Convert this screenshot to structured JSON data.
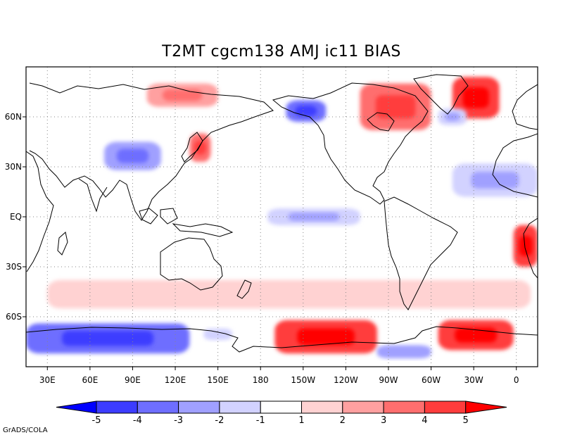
{
  "title": "T2MT cgcm138 AMJ ic11 BIAS",
  "credit": "GrADS/COLA",
  "map": {
    "lon_range": [
      15,
      375
    ],
    "lat_range": [
      -90,
      90
    ],
    "x_ticks": [
      {
        "lon": 30,
        "label": "30E"
      },
      {
        "lon": 60,
        "label": "60E"
      },
      {
        "lon": 90,
        "label": "90E"
      },
      {
        "lon": 120,
        "label": "120E"
      },
      {
        "lon": 150,
        "label": "150E"
      },
      {
        "lon": 180,
        "label": "180"
      },
      {
        "lon": 210,
        "label": "150W"
      },
      {
        "lon": 240,
        "label": "120W"
      },
      {
        "lon": 270,
        "label": "90W"
      },
      {
        "lon": 300,
        "label": "60W"
      },
      {
        "lon": 330,
        "label": "30W"
      },
      {
        "lon": 360,
        "label": "0"
      }
    ],
    "y_ticks": [
      {
        "lat": 60,
        "label": "60N"
      },
      {
        "lat": 30,
        "label": "30N"
      },
      {
        "lat": 0,
        "label": "EQ"
      },
      {
        "lat": -30,
        "label": "30S"
      },
      {
        "lat": -60,
        "label": "60S"
      }
    ]
  },
  "colorbar": {
    "colors": [
      "#0000ff",
      "#3c3cff",
      "#6e6eff",
      "#a0a0ff",
      "#d2d2ff",
      "#ffffff",
      "#ffd2d2",
      "#ffa0a0",
      "#ff6e6e",
      "#ff3c3c",
      "#ff0000"
    ],
    "labels": [
      "-5",
      "-4",
      "-3",
      "-2",
      "-1",
      "1",
      "2",
      "3",
      "4",
      "5"
    ]
  },
  "chart_data": {
    "type": "heatmap",
    "variable": "T2MT",
    "title": "T2MT cgcm138 AMJ ic11 BIAS",
    "levels": [
      -5,
      -4,
      -3,
      -2,
      -1,
      1,
      2,
      3,
      4,
      5
    ],
    "features": [
      {
        "name": "Antarctic Indian sector cold bias",
        "lon": [
          15,
          130
        ],
        "lat": [
          -82,
          -64
        ],
        "value": -4
      },
      {
        "name": "Ross Sea cold patch",
        "lon": [
          140,
          160
        ],
        "lat": [
          -74,
          -67
        ],
        "value": -2
      },
      {
        "name": "Antarctic Pacific warm bias",
        "lon": [
          190,
          262
        ],
        "lat": [
          -82,
          -62
        ],
        "value": 4
      },
      {
        "name": "Weddell Sea warm bias",
        "lon": [
          305,
          358
        ],
        "lat": [
          -80,
          -62
        ],
        "value": 4
      },
      {
        "name": "Bellingshausen cold patch",
        "lon": [
          262,
          300
        ],
        "lat": [
          -85,
          -77
        ],
        "value": -3
      },
      {
        "name": "Greenland warm bias",
        "lon": [
          315,
          348
        ],
        "lat": [
          59,
          84
        ],
        "value": 4
      },
      {
        "name": "Canadian Arctic warm bias",
        "lon": [
          250,
          300
        ],
        "lat": [
          52,
          80
        ],
        "value": 3
      },
      {
        "name": "Alaska cold bias",
        "lon": [
          198,
          226
        ],
        "lat": [
          57,
          70
        ],
        "value": -4
      },
      {
        "name": "Northern Siberia warm bias",
        "lon": [
          100,
          150
        ],
        "lat": [
          66,
          80
        ],
        "value": 2
      },
      {
        "name": "Japan warm bias",
        "lon": [
          130,
          145
        ],
        "lat": [
          33,
          50
        ],
        "value": 3
      },
      {
        "name": "Tibet mixed bias",
        "lon": [
          70,
          110
        ],
        "lat": [
          28,
          45
        ],
        "value": -3
      },
      {
        "name": "Equatorial Pacific cold tongue",
        "lon": [
          185,
          250
        ],
        "lat": [
          -5,
          5
        ],
        "value": -2
      },
      {
        "name": "Subtropical N Pacific cold",
        "lon": [
          165,
          230
        ],
        "lat": [
          13,
          24
        ],
        "value": -1
      },
      {
        "name": "Subtropical N Atlantic cold",
        "lon": [
          315,
          375
        ],
        "lat": [
          12,
          32
        ],
        "value": -2
      },
      {
        "name": "SE Atlantic / SW Africa warm",
        "lon": [
          358,
          375
        ],
        "lat": [
          -30,
          -5
        ],
        "value": 4
      },
      {
        "name": "Labrador Sea cold",
        "lon": [
          305,
          325
        ],
        "lat": [
          55,
          65
        ],
        "value": -2
      },
      {
        "name": "Southern Ocean warm band",
        "lon": [
          30,
          370
        ],
        "lat": [
          -55,
          -38
        ],
        "value": 1
      }
    ]
  }
}
